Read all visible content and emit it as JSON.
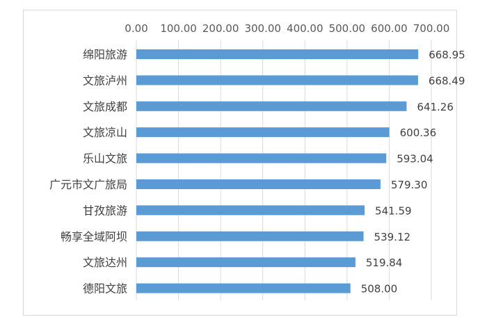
{
  "chart_data": {
    "type": "bar",
    "orientation": "horizontal",
    "title": "",
    "xlabel": "",
    "ylabel": "",
    "categories": [
      "绵阳旅游",
      "文旅泸州",
      "文旅成都",
      "文旅凉山",
      "乐山文旅",
      "广元市文广旅局",
      "甘孜旅游",
      "畅享全域阿坝",
      "文旅达州",
      "德阳文旅"
    ],
    "values": [
      668.95,
      668.49,
      641.26,
      600.36,
      593.04,
      579.3,
      541.59,
      539.12,
      519.84,
      508.0
    ],
    "value_labels": [
      "668.95",
      "668.49",
      "641.26",
      "600.36",
      "593.04",
      "579.30",
      "541.59",
      "539.12",
      "519.84",
      "508.00"
    ],
    "xlim": [
      0,
      700
    ],
    "x_ticks": [
      "0.00",
      "100.00",
      "200.00",
      "300.00",
      "400.00",
      "500.00",
      "600.00",
      "700.00"
    ],
    "x_axis_position": "top",
    "grid": true,
    "legend": "none",
    "bar_color": "#5b9bd5"
  }
}
